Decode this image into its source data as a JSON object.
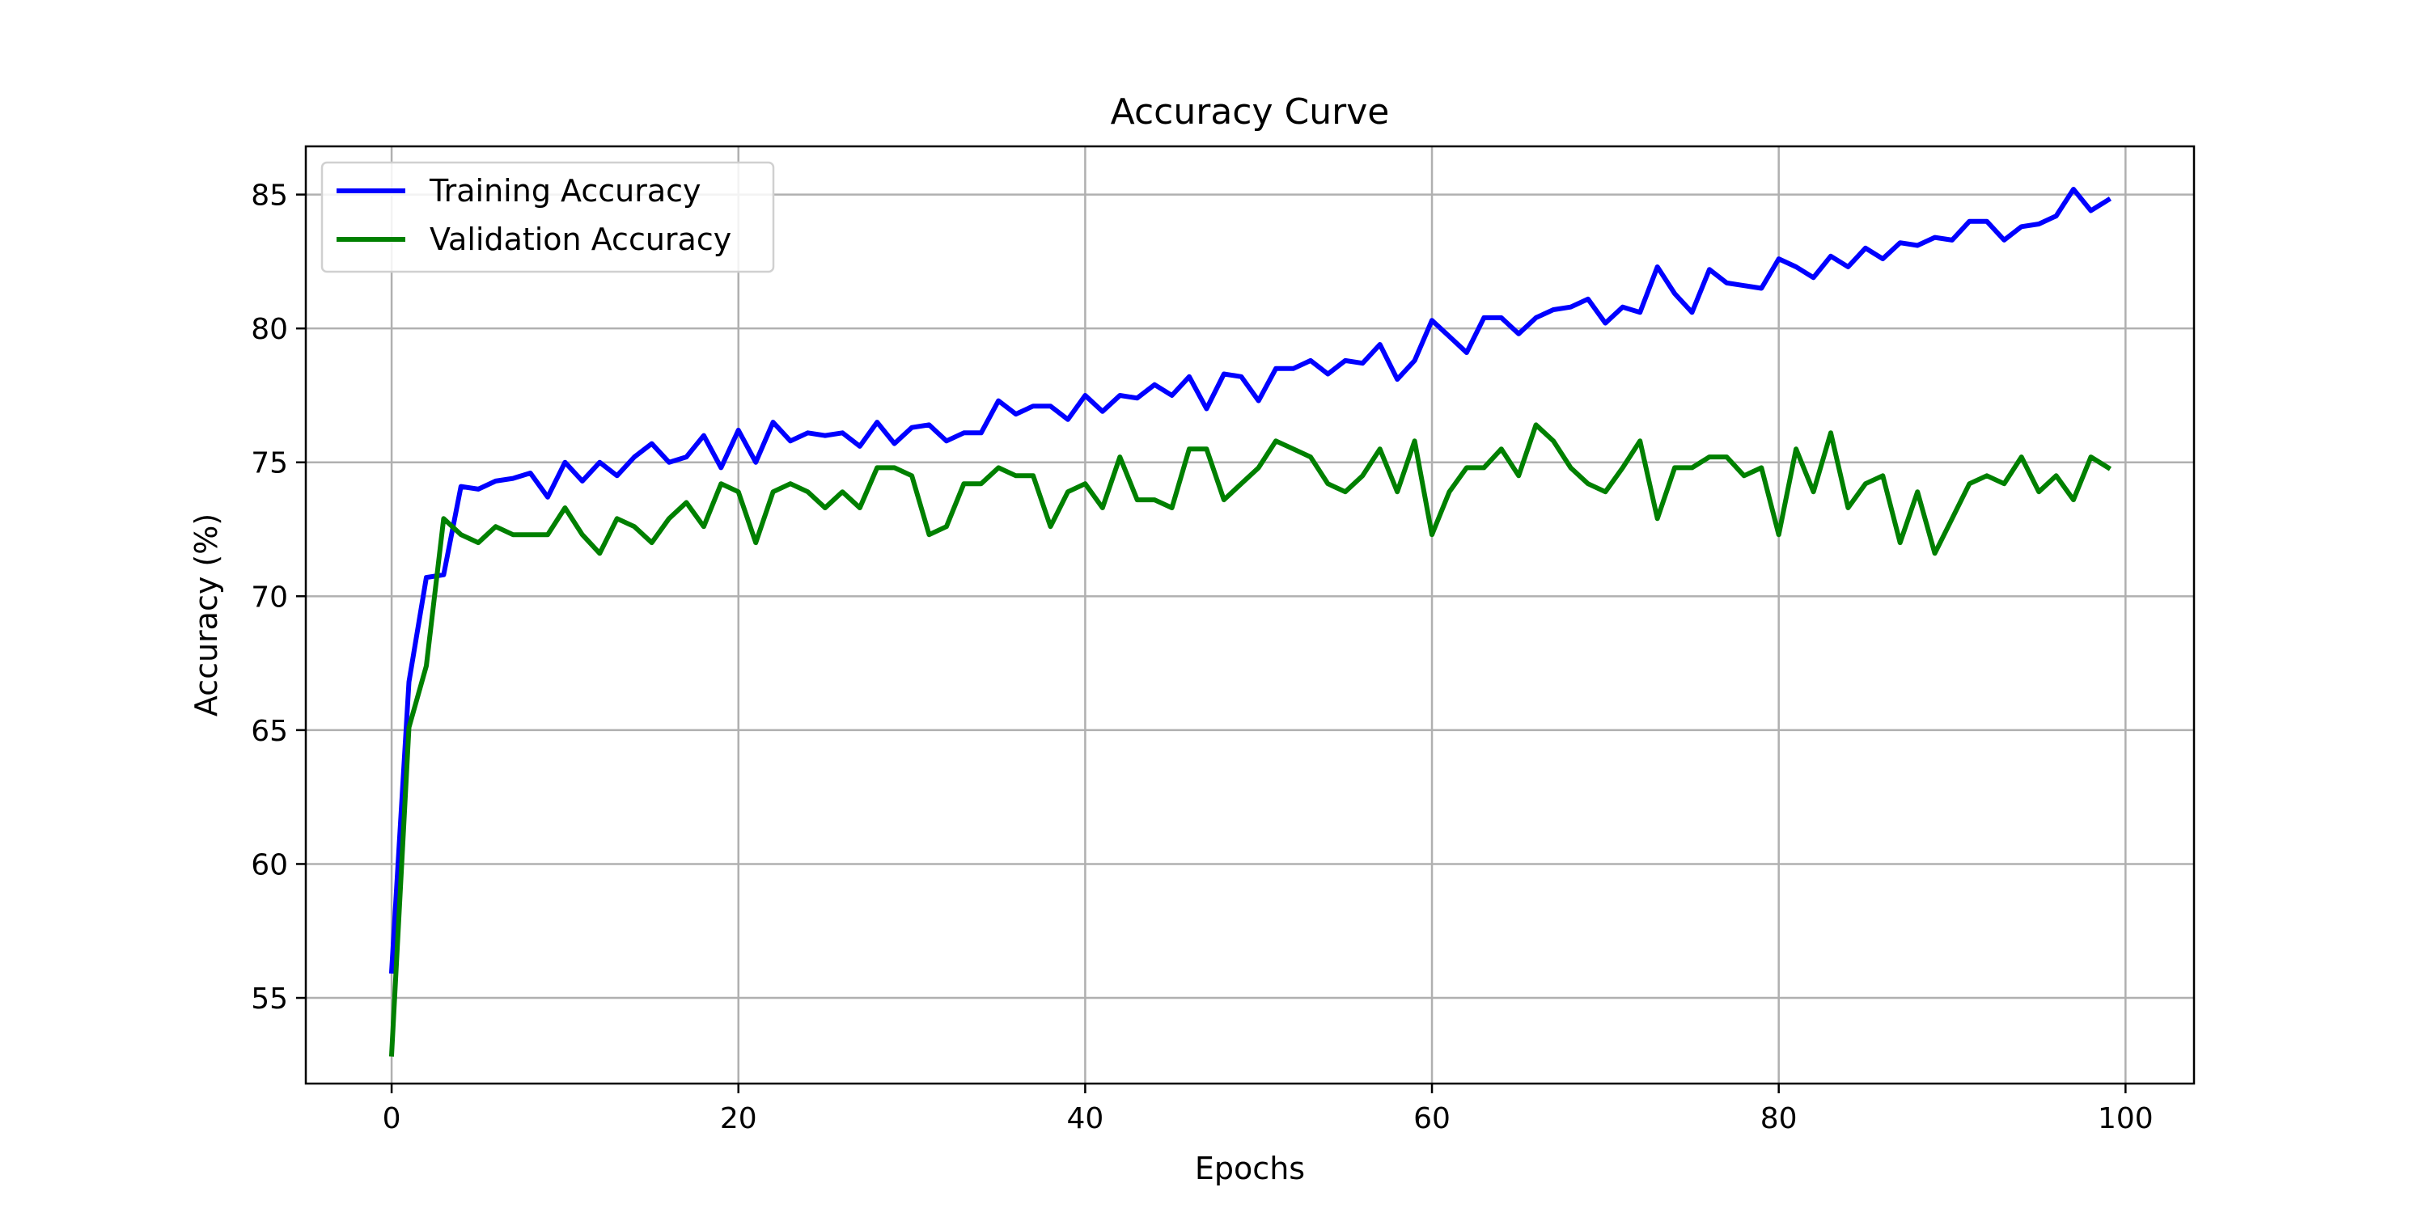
{
  "chart_data": {
    "type": "line",
    "title": "Accuracy Curve",
    "xlabel": "Epochs",
    "ylabel": "Accuracy (%)",
    "xlim": [
      -4.95,
      103.95
    ],
    "ylim": [
      51.8,
      86.8
    ],
    "xticks": [
      0,
      20,
      40,
      60,
      80,
      100
    ],
    "yticks": [
      55,
      60,
      65,
      70,
      75,
      80,
      85
    ],
    "grid": true,
    "legend": "upper left",
    "series": [
      {
        "name": "Training Accuracy",
        "color": "#0000ff",
        "x": [
          0,
          1,
          2,
          3,
          4,
          5,
          6,
          7,
          8,
          9,
          10,
          11,
          12,
          13,
          14,
          15,
          16,
          17,
          18,
          19,
          20,
          21,
          22,
          23,
          24,
          25,
          26,
          27,
          28,
          29,
          30,
          31,
          32,
          33,
          34,
          35,
          36,
          37,
          38,
          39,
          40,
          41,
          42,
          43,
          44,
          45,
          46,
          47,
          48,
          49,
          50,
          51,
          52,
          53,
          54,
          55,
          56,
          57,
          58,
          59,
          60,
          61,
          62,
          63,
          64,
          65,
          66,
          67,
          68,
          69,
          70,
          71,
          72,
          73,
          74,
          75,
          76,
          77,
          78,
          79,
          80,
          81,
          82,
          83,
          84,
          85,
          86,
          87,
          88,
          89,
          90,
          91,
          92,
          93,
          94,
          95,
          96,
          97,
          98,
          99
        ],
        "values": [
          56.0,
          66.8,
          70.7,
          70.8,
          74.1,
          74.0,
          74.3,
          74.4,
          74.6,
          73.7,
          75.0,
          74.3,
          75.0,
          74.5,
          75.2,
          75.7,
          75.0,
          75.2,
          76.0,
          74.8,
          76.2,
          75.0,
          76.5,
          75.8,
          76.1,
          76.0,
          76.1,
          75.6,
          76.5,
          75.7,
          76.3,
          76.4,
          75.8,
          76.1,
          76.1,
          77.3,
          76.8,
          77.1,
          77.1,
          76.6,
          77.5,
          76.9,
          77.5,
          77.4,
          77.9,
          77.5,
          78.2,
          77.0,
          78.3,
          78.2,
          77.3,
          78.5,
          78.5,
          78.8,
          78.3,
          78.8,
          78.7,
          79.4,
          78.1,
          78.8,
          80.3,
          79.7,
          79.1,
          80.4,
          80.4,
          79.8,
          80.4,
          80.7,
          80.8,
          81.1,
          80.2,
          80.8,
          80.6,
          82.3,
          81.3,
          80.6,
          82.2,
          81.7,
          81.6,
          81.5,
          82.6,
          82.3,
          81.9,
          82.7,
          82.3,
          83.0,
          82.6,
          83.2,
          83.1,
          83.4,
          83.3,
          84.0,
          84.0,
          83.3,
          83.8,
          83.9,
          84.2,
          85.2,
          84.4,
          84.8
        ]
      },
      {
        "name": "Validation Accuracy",
        "color": "#008000",
        "x": [
          0,
          1,
          2,
          3,
          4,
          5,
          6,
          7,
          8,
          9,
          10,
          11,
          12,
          13,
          14,
          15,
          16,
          17,
          18,
          19,
          20,
          21,
          22,
          23,
          24,
          25,
          26,
          27,
          28,
          29,
          30,
          31,
          32,
          33,
          34,
          35,
          36,
          37,
          38,
          39,
          40,
          41,
          42,
          43,
          44,
          45,
          46,
          47,
          48,
          49,
          50,
          51,
          52,
          53,
          54,
          55,
          56,
          57,
          58,
          59,
          60,
          61,
          62,
          63,
          64,
          65,
          66,
          67,
          68,
          69,
          70,
          71,
          72,
          73,
          74,
          75,
          76,
          77,
          78,
          79,
          80,
          81,
          82,
          83,
          84,
          85,
          86,
          87,
          88,
          89,
          90,
          91,
          92,
          93,
          94,
          95,
          96,
          97,
          98,
          99
        ],
        "values": [
          52.9,
          65.1,
          67.4,
          72.9,
          72.3,
          72.0,
          72.6,
          72.3,
          72.3,
          72.3,
          73.3,
          72.3,
          71.6,
          72.9,
          72.6,
          72.0,
          72.9,
          73.5,
          72.6,
          74.2,
          73.9,
          72.0,
          73.9,
          74.2,
          73.9,
          73.3,
          73.9,
          73.3,
          74.8,
          74.8,
          74.5,
          72.3,
          72.6,
          74.2,
          74.2,
          74.8,
          74.5,
          74.5,
          72.6,
          73.9,
          74.2,
          73.3,
          75.2,
          73.6,
          73.6,
          73.3,
          75.5,
          75.5,
          73.6,
          74.2,
          74.8,
          75.8,
          75.5,
          75.2,
          74.2,
          73.9,
          74.5,
          75.5,
          73.9,
          75.8,
          72.3,
          73.9,
          74.8,
          74.8,
          75.5,
          74.5,
          76.4,
          75.8,
          74.8,
          74.2,
          73.9,
          74.8,
          75.8,
          72.9,
          74.8,
          74.8,
          75.2,
          75.2,
          74.5,
          74.8,
          72.3,
          75.5,
          73.9,
          76.1,
          73.3,
          74.2,
          74.5,
          72.0,
          73.9,
          71.6,
          72.9,
          74.2,
          74.5,
          74.2,
          75.2,
          73.9,
          74.5,
          73.6,
          75.2,
          74.8
        ]
      }
    ]
  }
}
